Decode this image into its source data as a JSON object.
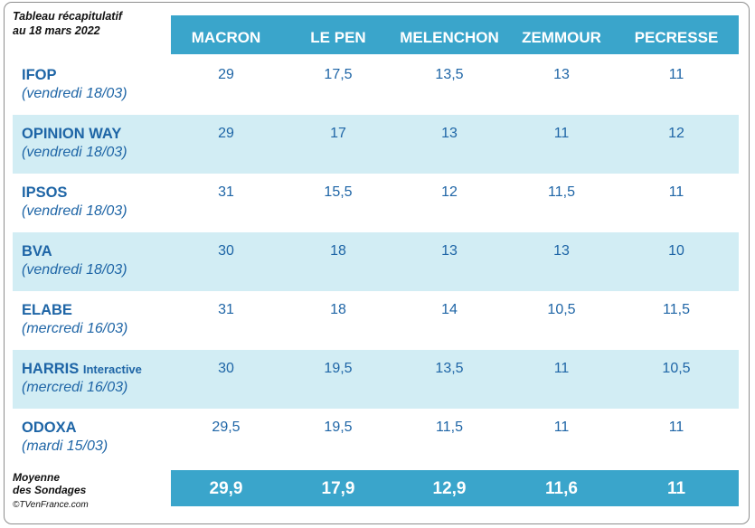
{
  "caption": {
    "line1": "Tableau récapitulatif",
    "line2": "au 18 mars 2022"
  },
  "columns": [
    "MACRON",
    "LE PEN",
    "MELENCHON",
    "ZEMMOUR",
    "PECRESSE"
  ],
  "rows": [
    {
      "institute": "IFOP",
      "suffix": "",
      "date": "(vendredi 18/03)",
      "values": [
        "29",
        "17,5",
        "13,5",
        "13",
        "11"
      ]
    },
    {
      "institute": "OPINION WAY",
      "suffix": "",
      "date": "(vendredi 18/03)",
      "values": [
        "29",
        "17",
        "13",
        "11",
        "12"
      ]
    },
    {
      "institute": "IPSOS",
      "suffix": "",
      "date": "(vendredi 18/03)",
      "values": [
        "31",
        "15,5",
        "12",
        "11,5",
        "11"
      ]
    },
    {
      "institute": "BVA",
      "suffix": "",
      "date": "(vendredi 18/03)",
      "values": [
        "30",
        "18",
        "13",
        "13",
        "10"
      ]
    },
    {
      "institute": "ELABE",
      "suffix": "",
      "date": "(mercredi 16/03)",
      "values": [
        "31",
        "18",
        "14",
        "10,5",
        "11,5"
      ]
    },
    {
      "institute": "HARRIS",
      "suffix": "Interactive",
      "date": "(mercredi 16/03)",
      "values": [
        "30",
        "19,5",
        "13,5",
        "11",
        "10,5"
      ]
    },
    {
      "institute": "ODOXA",
      "suffix": "",
      "date": "(mardi 15/03)",
      "values": [
        "29,5",
        "19,5",
        "11,5",
        "11",
        "11"
      ]
    }
  ],
  "average": {
    "label_line1": "Moyenne",
    "label_line2": "des Sondages",
    "values": [
      "29,9",
      "17,9",
      "12,9",
      "11,6",
      "11"
    ]
  },
  "copyright": "©TVenFrance.com",
  "colors": {
    "header_bg": "#3aa5cb",
    "stripe_bg": "#d2edf4",
    "text_blue": "#1e65a6"
  },
  "chart_data": {
    "type": "table",
    "columns": [
      "MACRON",
      "LE PEN",
      "MELENCHON",
      "ZEMMOUR",
      "PECRESSE"
    ],
    "rows": [
      {
        "label": "IFOP",
        "values": [
          29,
          17.5,
          13.5,
          13,
          11
        ]
      },
      {
        "label": "OPINION WAY",
        "values": [
          29,
          17,
          13,
          11,
          12
        ]
      },
      {
        "label": "IPSOS",
        "values": [
          31,
          15.5,
          12,
          11.5,
          11
        ]
      },
      {
        "label": "BVA",
        "values": [
          30,
          18,
          13,
          13,
          10
        ]
      },
      {
        "label": "ELABE",
        "values": [
          31,
          18,
          14,
          10.5,
          11.5
        ]
      },
      {
        "label": "HARRIS Interactive",
        "values": [
          30,
          19.5,
          13.5,
          11,
          10.5
        ]
      },
      {
        "label": "ODOXA",
        "values": [
          29.5,
          19.5,
          11.5,
          11,
          11
        ]
      }
    ],
    "average": [
      29.9,
      17.9,
      12.9,
      11.6,
      11
    ]
  }
}
